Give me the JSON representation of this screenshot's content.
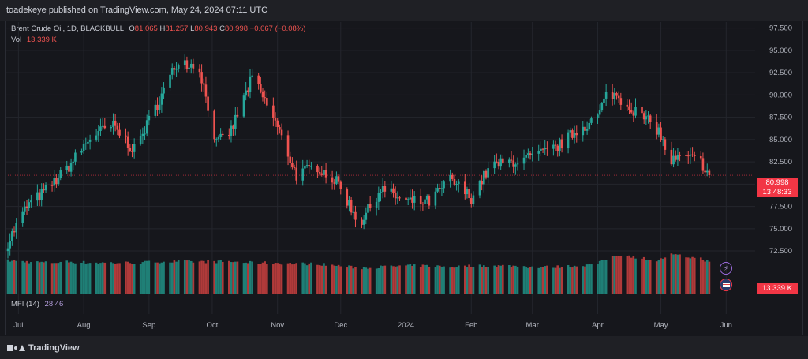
{
  "header": {
    "published_by": "toadekeye published on TradingView.com, May 24, 2024 07:11 UTC"
  },
  "legend": {
    "symbol": "Brent Crude Oil, 1D, BLACKBULL",
    "open_label": "O",
    "open": "81.065",
    "high_label": "H",
    "high": "81.257",
    "low_label": "L",
    "low": "80.943",
    "close_label": "C",
    "close": "80.998",
    "change": "−0.067 (−0.08%)",
    "vol_label": "Vol",
    "vol": "13.339 K"
  },
  "mfi": {
    "label": "MFI (14)",
    "value": "28.46"
  },
  "price_tag": {
    "price": "80.998",
    "countdown": "13:48:33"
  },
  "volume_tag": "13.339 K",
  "footer": {
    "brand": "TradingView"
  },
  "colors": {
    "up": "#26a69a",
    "down": "#ef5350",
    "up_vol": "#1f7f76",
    "down_vol": "#b03a3a",
    "grid": "#24262d",
    "tag": "#f23645"
  },
  "icons": {
    "flash": "lightning-icon",
    "flag": "us-flag-icon"
  },
  "chart_data": {
    "type": "candlestick",
    "y_axis": {
      "ticks": [
        "97.500",
        "95.000",
        "92.500",
        "90.000",
        "87.500",
        "85.000",
        "82.500",
        "80.000",
        "77.500",
        "75.000",
        "72.500"
      ],
      "range": [
        71.0,
        98.0
      ]
    },
    "x_axis": {
      "ticks": [
        "Jul",
        "Aug",
        "Sep",
        "Oct",
        "Nov",
        "Dec",
        "2024",
        "Feb",
        "Mar",
        "Apr",
        "May",
        "Jun"
      ],
      "range": [
        "2023-06-26",
        "2024-06-14"
      ]
    },
    "grid": true,
    "series": {
      "dates": [
        "2023-06-26",
        "2023-07-05",
        "2023-07-15",
        "2023-07-25",
        "2023-08-05",
        "2023-08-15",
        "2023-08-25",
        "2023-09-05",
        "2023-09-15",
        "2023-09-25",
        "2023-10-03",
        "2023-10-10",
        "2023-10-20",
        "2023-10-30",
        "2023-11-10",
        "2023-11-20",
        "2023-11-30",
        "2023-12-10",
        "2023-12-20",
        "2024-01-01",
        "2024-01-12",
        "2024-01-22",
        "2024-02-01",
        "2024-02-10",
        "2024-02-20",
        "2024-03-01",
        "2024-03-12",
        "2024-03-22",
        "2024-04-01",
        "2024-04-06",
        "2024-04-12",
        "2024-04-20",
        "2024-04-30",
        "2024-05-05",
        "2024-05-12",
        "2024-05-20",
        "2024-05-24"
      ],
      "close": [
        73.5,
        77.5,
        79.5,
        82.0,
        85.5,
        86.5,
        83.8,
        89.0,
        94.0,
        93.0,
        84.5,
        86.0,
        92.0,
        87.5,
        81.0,
        82.0,
        80.0,
        75.5,
        79.5,
        78.0,
        78.0,
        80.5,
        78.5,
        82.0,
        82.5,
        83.0,
        84.0,
        86.0,
        87.5,
        90.5,
        89.5,
        88.0,
        86.0,
        82.5,
        83.0,
        82.5,
        81.0
      ],
      "volume": [
        27,
        26,
        25,
        26,
        25,
        25,
        25,
        26,
        26,
        26,
        26,
        26,
        25,
        25,
        24,
        24,
        22,
        20,
        21,
        22,
        22,
        21,
        22,
        22,
        22,
        21,
        21,
        22,
        24,
        30,
        33,
        30,
        27,
        33,
        31,
        29,
        26
      ]
    }
  }
}
